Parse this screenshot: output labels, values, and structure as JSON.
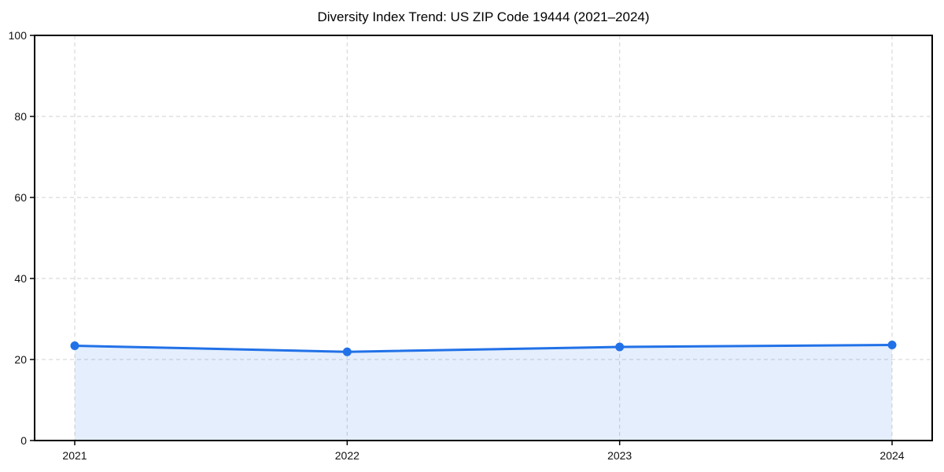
{
  "page": {
    "background": "#ffffff"
  },
  "chart_data": {
    "type": "line",
    "title": "Diversity Index Trend: US ZIP Code 19444 (2021–2024)",
    "xlabel": "",
    "ylabel": "",
    "categories": [
      "2021",
      "2022",
      "2023",
      "2024"
    ],
    "series": [
      {
        "name": "Diversity Index",
        "values": [
          23.4,
          21.9,
          23.1,
          23.6
        ]
      }
    ],
    "ylim": [
      0,
      100
    ],
    "yticks": [
      0,
      20,
      40,
      60,
      80,
      100
    ],
    "grid": "dashed",
    "legend": "none",
    "area_fill": true,
    "markers": "circle",
    "colors": {
      "line": "#2171e8",
      "marker": "#2171e8",
      "fill": "rgba(33,113,232,0.12)",
      "grid": "#d9d9d9",
      "spine": "#000000",
      "tick_label": "#111111",
      "title": "#000000"
    }
  }
}
